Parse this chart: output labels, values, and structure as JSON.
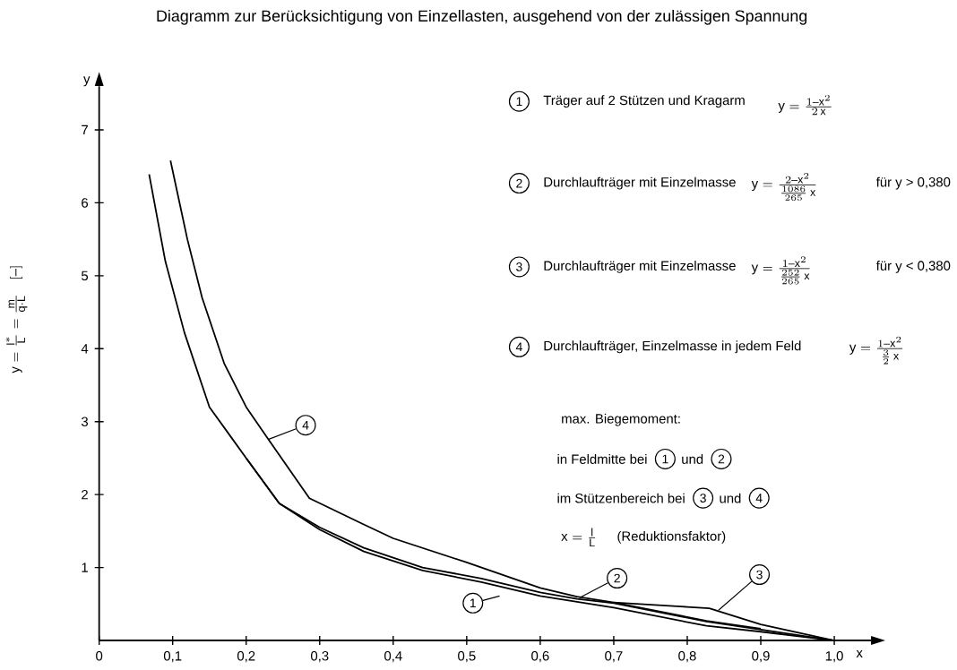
{
  "chart_data": {
    "type": "line",
    "title": "Diagramm zur Berücksichtigung von Einzellasten, ausgehend von der zulässigen Spannung",
    "xlabel": "x",
    "ylabel": "y = \\frac{l^{*}}{L} = \\frac{m}{q \\cdot L} \\quad [-]",
    "xlim": [
      0,
      1.05
    ],
    "ylim": [
      0,
      7.6
    ],
    "xticks": [
      0,
      {
        "value": 0.1,
        "label": "0,1"
      },
      {
        "value": 0.2,
        "label": "0,2"
      },
      {
        "value": 0.3,
        "label": "0,3"
      },
      {
        "value": 0.4,
        "label": "0,4"
      },
      {
        "value": 0.5,
        "label": "0,5"
      },
      {
        "value": 0.6,
        "label": "0,6"
      },
      {
        "value": 0.7,
        "label": "0,7"
      },
      {
        "value": 0.8,
        "label": "0,8"
      },
      {
        "value": 0.9,
        "label": "0,9"
      },
      {
        "value": 1.0,
        "label": "1,0"
      }
    ],
    "yticks": [
      1,
      2,
      3,
      4,
      5,
      6,
      7
    ],
    "series": [
      {
        "name": "1",
        "color": "#000000",
        "x": [
          0.068,
          0.09,
          0.116,
          0.15,
          0.2,
          0.245,
          0.3,
          0.36,
          0.44,
          0.52,
          0.6,
          0.7,
          0.826,
          0.9,
          1.0
        ],
        "values": [
          6.39,
          5.2,
          4.22,
          3.2,
          2.5,
          1.88,
          1.52,
          1.22,
          0.96,
          0.8,
          0.61,
          0.45,
          0.2,
          0.12,
          0
        ]
      },
      {
        "name": "2",
        "color": "#000000",
        "x": [
          0.2,
          0.245,
          0.3,
          0.36,
          0.44,
          0.52,
          0.6,
          0.65,
          0.7,
          0.826,
          0.9,
          1.0
        ],
        "values": [
          2.5,
          1.88,
          1.55,
          1.27,
          1.0,
          0.85,
          0.66,
          0.57,
          0.51,
          0.26,
          0.15,
          0
        ]
      },
      {
        "name": "3",
        "color": "#000000",
        "x": [
          0.7,
          0.8,
          0.83,
          0.9,
          1.0
        ],
        "values": [
          0.52,
          0.46,
          0.44,
          0.22,
          0
        ]
      },
      {
        "name": "4",
        "color": "#000000",
        "x": [
          0.097,
          0.12,
          0.14,
          0.17,
          0.2,
          0.23,
          0.286,
          0.358,
          0.4,
          0.5,
          0.6,
          0.65,
          0.7,
          0.826,
          0.9
        ],
        "values": [
          6.58,
          5.5,
          4.7,
          3.8,
          3.2,
          2.76,
          1.95,
          1.6,
          1.4,
          1.07,
          0.72,
          0.6,
          0.52,
          0.27,
          0.16
        ]
      }
    ],
    "annotations": [
      "Träger auf 2 Stützen und Kragarm",
      "y = \\frac{1 - x^2}{2\\,x}",
      "Durchlaufträger mit Einzelmasse",
      "y = \\frac{2 - x^2}{\\frac{1086}{265}\\,x}",
      "für y > 0,380",
      "Durchlaufträger mit Einzelmasse",
      "y = \\frac{1 - x^2}{\\frac{252}{265}\\,x}",
      "für y < 0,380",
      "Durchlaufträger, Einzelmasse in jedem Feld",
      "y = \\frac{1 - x^2}{\\frac{3}{2}\\,x}",
      "max. Biegemoment:",
      "in Feldmitte bei",
      "1",
      "und",
      "2",
      "im Stützenbereich bei",
      "3",
      "und",
      "4",
      "x = \\frac{l}{L}",
      "(Reduktionsfaktor)",
      "y"
    ]
  }
}
